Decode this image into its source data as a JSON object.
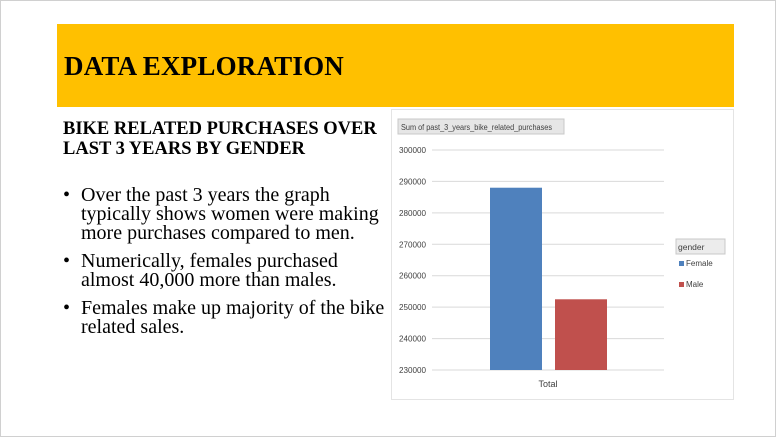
{
  "banner": {
    "title": "DATA EXPLORATION"
  },
  "subtitle": "BIKE RELATED PURCHASES OVER LAST 3 YEARS BY GENDER",
  "bullets": [
    "Over the past 3 years the graph typically shows women were making more purchases compared to men.",
    "Numerically, females purchased almost 40,000 more than males.",
    "Females make up majority of the bike related sales."
  ],
  "colors": {
    "banner": "#ffc000",
    "female": "#4f81bd",
    "male": "#c0504d"
  },
  "chart_data": {
    "type": "bar",
    "title": "Sum of past_3_years_bike_related_purchases",
    "categories": [
      "Total"
    ],
    "series": [
      {
        "name": "Female",
        "values": [
          288000
        ],
        "color": "#4f81bd"
      },
      {
        "name": "Male",
        "values": [
          252500
        ],
        "color": "#c0504d"
      }
    ],
    "ylim": [
      230000,
      300000
    ],
    "yticks": [
      "300000",
      "290000",
      "280000",
      "270000",
      "260000",
      "250000",
      "240000",
      "230000"
    ],
    "legend_title": "gender",
    "legend_position": "right",
    "grid": true
  }
}
